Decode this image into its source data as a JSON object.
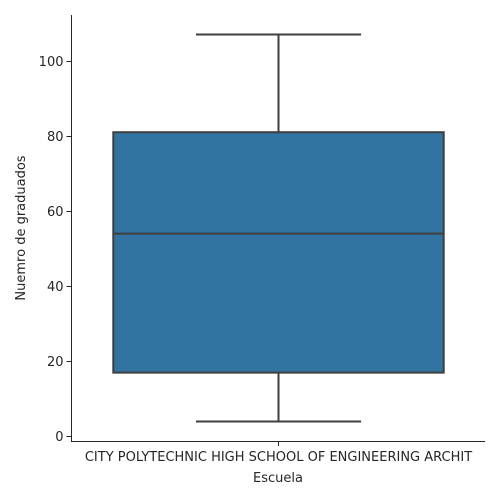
{
  "chart_data": {
    "type": "box",
    "xlabel": "Escuela",
    "ylabel": "Nuemro de graduados",
    "categories": [
      "CITY POLYTECHNIC HIGH SCHOOL OF ENGINEERING ARCHIT"
    ],
    "boxes": [
      {
        "category": "CITY POLYTECHNIC HIGH SCHOOL OF ENGINEERING ARCHIT",
        "whisker_low": 4,
        "q1": 17,
        "median": 54,
        "q3": 81,
        "whisker_high": 107
      }
    ],
    "yticks": [
      0,
      20,
      40,
      60,
      80,
      100
    ],
    "ylim": [
      -1.2,
      112.2
    ],
    "box_color": "#3274a1",
    "line_color": "#3f3f3f",
    "grid": false,
    "legend": false
  }
}
